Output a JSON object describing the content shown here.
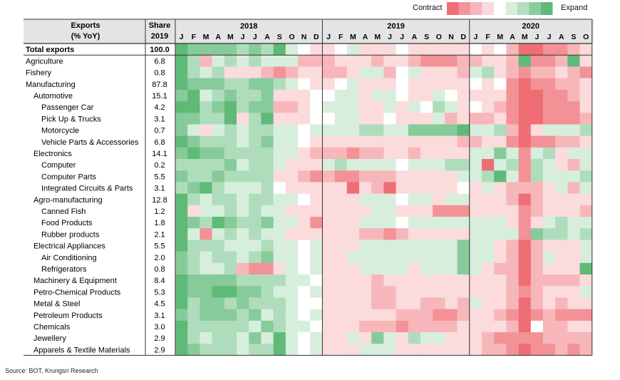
{
  "legend": {
    "contract_label": "Contract",
    "expand_label": "Expand",
    "scale_colors": [
      "#ee6e74",
      "#f3949a",
      "#f7b8bc",
      "#fadadc",
      "#ffffff",
      "#d6eedc",
      "#b2e0be",
      "#89cd9c",
      "#5fba78"
    ]
  },
  "source": "Source: BOT, Krungsri Research",
  "header": {
    "col1_line1": "Exports",
    "col1_line2": "(% YoY)",
    "col2_line1": "Share",
    "col2_line2": "2019"
  },
  "colors": {
    "contract": "#ee6e74",
    "neutral": "#ffffff",
    "expand": "#5fba78",
    "header_bg": "#e4e4e4"
  },
  "chart_data": {
    "type": "heatmap",
    "value_scale": "ordinal shade from -4 (strong contraction) to +4 (strong expansion), estimated from cell colors",
    "years": [
      {
        "label": "2018",
        "months": [
          "J",
          "F",
          "M",
          "A",
          "M",
          "J",
          "J",
          "A",
          "S",
          "O",
          "N",
          "D"
        ]
      },
      {
        "label": "2019",
        "months": [
          "J",
          "F",
          "M",
          "A",
          "M",
          "J",
          "J",
          "A",
          "S",
          "O",
          "N",
          "D"
        ]
      },
      {
        "label": "2020",
        "months": [
          "J",
          "F",
          "M",
          "A",
          "M",
          "J",
          "J",
          "A",
          "S",
          "O"
        ]
      }
    ],
    "rows": [
      {
        "label": "Total exports",
        "share": "100.0",
        "indent": 0,
        "bold": true,
        "values": [
          4,
          3,
          3,
          3,
          3,
          2,
          3,
          2,
          4,
          1,
          0,
          -1,
          -1,
          0,
          1,
          -1,
          -1,
          -1,
          0,
          -1,
          -1,
          -1,
          -1,
          -1,
          0,
          -1,
          0,
          -2,
          -4,
          -4,
          -3,
          -3,
          -2,
          -1
        ]
      },
      {
        "label": "Agriculture",
        "share": "6.8",
        "indent": 0,
        "values": [
          4,
          2,
          -2,
          1,
          2,
          1,
          2,
          1,
          1,
          1,
          -2,
          -2,
          -2,
          -1,
          -1,
          -1,
          -2,
          -1,
          -1,
          -2,
          -3,
          -3,
          -3,
          -2,
          -2,
          -1,
          -1,
          -2,
          4,
          -3,
          -3,
          -2,
          4,
          -1
        ]
      },
      {
        "label": "Fishery",
        "share": "0.8",
        "indent": 0,
        "values": [
          4,
          2,
          1,
          2,
          -1,
          -1,
          -1,
          -2,
          -3,
          -2,
          -1,
          -1,
          -2,
          -2,
          -1,
          1,
          1,
          -2,
          0,
          1,
          -1,
          -1,
          -1,
          -2,
          1,
          2,
          -1,
          -2,
          -3,
          -2,
          -2,
          -1,
          -2,
          -3
        ]
      },
      {
        "label": "Manufacturing",
        "share": "87.8",
        "indent": 0,
        "values": [
          4,
          3,
          3,
          3,
          2,
          2,
          3,
          3,
          2,
          1,
          0,
          -1,
          -1,
          0,
          1,
          -1,
          -1,
          -1,
          0,
          -1,
          -1,
          -1,
          -1,
          -1,
          0,
          -1,
          0,
          -3,
          -4,
          -3,
          -3,
          -2,
          -2,
          -1
        ]
      },
      {
        "label": "Automotive",
        "share": "15.1",
        "indent": 1,
        "values": [
          3,
          4,
          1,
          2,
          3,
          2,
          2,
          3,
          -1,
          -1,
          -1,
          0,
          0,
          1,
          1,
          -1,
          1,
          1,
          0,
          -1,
          -1,
          1,
          0,
          -1,
          -1,
          -1,
          -1,
          -3,
          -4,
          -4,
          -3,
          -3,
          -2,
          -1
        ]
      },
      {
        "label": "Passenger Car",
        "share": "4.2",
        "indent": 2,
        "values": [
          4,
          4,
          2,
          3,
          4,
          2,
          3,
          3,
          -2,
          -2,
          -1,
          0,
          1,
          1,
          1,
          -1,
          -1,
          1,
          -1,
          1,
          0,
          2,
          1,
          -1,
          0,
          -1,
          -2,
          -3,
          -4,
          -4,
          -3,
          -3,
          -3,
          -1
        ]
      },
      {
        "label": "Pick Up & Trucks",
        "share": "3.1",
        "indent": 2,
        "values": [
          3,
          3,
          2,
          2,
          4,
          -1,
          2,
          4,
          -1,
          -1,
          -1,
          0,
          0,
          1,
          1,
          -1,
          -1,
          0,
          -1,
          -1,
          -1,
          1,
          -2,
          -1,
          -2,
          -2,
          -1,
          -3,
          -4,
          -4,
          -3,
          -3,
          -3,
          -2
        ]
      },
      {
        "label": "Motorcycle",
        "share": "0.7",
        "indent": 2,
        "values": [
          3,
          1,
          -1,
          1,
          2,
          1,
          2,
          2,
          1,
          1,
          0,
          1,
          1,
          1,
          1,
          2,
          2,
          1,
          1,
          3,
          3,
          3,
          3,
          4,
          1,
          1,
          2,
          -2,
          -4,
          -1,
          1,
          1,
          1,
          2
        ]
      },
      {
        "label": "Vehicle Parts & Accessories",
        "share": "6.8",
        "indent": 2,
        "values": [
          4,
          3,
          2,
          2,
          2,
          1,
          2,
          3,
          1,
          1,
          0,
          -1,
          -1,
          -1,
          -1,
          -1,
          -1,
          -1,
          -1,
          -1,
          -1,
          -1,
          -1,
          -2,
          -2,
          -1,
          -1,
          -3,
          -4,
          -3,
          -3,
          -2,
          -2,
          -1
        ]
      },
      {
        "label": "Electronics",
        "share": "14.1",
        "indent": 1,
        "values": [
          3,
          4,
          3,
          3,
          2,
          2,
          2,
          2,
          1,
          1,
          -1,
          -2,
          -2,
          -2,
          -3,
          -2,
          -2,
          -1,
          -1,
          -2,
          -1,
          -1,
          -1,
          -1,
          1,
          1,
          3,
          1,
          -3,
          1,
          2,
          -1,
          1,
          1
        ]
      },
      {
        "label": "Computer",
        "share": "0.2",
        "indent": 2,
        "values": [
          2,
          2,
          2,
          2,
          3,
          1,
          2,
          2,
          1,
          -1,
          -1,
          -1,
          1,
          2,
          1,
          1,
          1,
          1,
          0,
          1,
          1,
          1,
          2,
          2,
          1,
          -4,
          1,
          2,
          -3,
          2,
          1,
          -1,
          -2,
          1
        ]
      },
      {
        "label": "Computer Parts",
        "share": "5.5",
        "indent": 2,
        "values": [
          3,
          2,
          2,
          3,
          2,
          2,
          2,
          2,
          -1,
          -1,
          -2,
          -3,
          -2,
          -3,
          -3,
          -2,
          -2,
          -2,
          -1,
          -1,
          -1,
          -1,
          -1,
          1,
          1,
          2,
          4,
          1,
          -3,
          2,
          1,
          1,
          1,
          2
        ]
      },
      {
        "label": "Integrated Circuits & Parts",
        "share": "3.1",
        "indent": 2,
        "values": [
          2,
          3,
          4,
          2,
          1,
          1,
          1,
          2,
          0,
          -1,
          -1,
          -1,
          -1,
          -1,
          -4,
          -1,
          -2,
          -4,
          -1,
          -1,
          -1,
          -1,
          -1,
          0,
          -1,
          1,
          -1,
          -2,
          -2,
          -2,
          -1,
          1,
          -2,
          1
        ]
      },
      {
        "label": "Agro-manufacturing",
        "share": "12.8",
        "indent": 1,
        "values": [
          4,
          2,
          1,
          2,
          2,
          1,
          2,
          2,
          1,
          1,
          0,
          -1,
          -1,
          -1,
          -1,
          1,
          1,
          1,
          0,
          1,
          1,
          -1,
          1,
          1,
          -1,
          -1,
          -1,
          -2,
          -4,
          -2,
          -1,
          -1,
          -1,
          -1
        ]
      },
      {
        "label": "Canned Fish",
        "share": "1.2",
        "indent": 2,
        "values": [
          4,
          -1,
          1,
          1,
          2,
          1,
          2,
          1,
          1,
          -1,
          -1,
          -1,
          -1,
          -1,
          -1,
          -1,
          1,
          1,
          -1,
          -1,
          -1,
          -3,
          -3,
          -3,
          -1,
          -1,
          -1,
          -1,
          -3,
          -2,
          -1,
          -1,
          -1,
          -2
        ]
      },
      {
        "label": "Food Products",
        "share": "1.8",
        "indent": 2,
        "values": [
          4,
          3,
          2,
          4,
          3,
          2,
          2,
          3,
          1,
          1,
          -1,
          -3,
          -1,
          -1,
          -1,
          1,
          1,
          1,
          0,
          1,
          1,
          1,
          1,
          1,
          1,
          1,
          1,
          -1,
          -3,
          -1,
          1,
          2,
          1,
          1
        ]
      },
      {
        "label": "Rubber products",
        "share": "2.1",
        "indent": 2,
        "values": [
          4,
          1,
          -3,
          1,
          2,
          1,
          2,
          1,
          1,
          -1,
          -1,
          -1,
          -1,
          -1,
          -1,
          -2,
          -2,
          -3,
          -2,
          -1,
          -1,
          -1,
          -1,
          -1,
          1,
          1,
          1,
          1,
          -3,
          3,
          2,
          2,
          1,
          2
        ]
      },
      {
        "label": "Electrical Appliances",
        "share": "5.5",
        "indent": 1,
        "values": [
          4,
          2,
          2,
          2,
          1,
          1,
          1,
          2,
          1,
          1,
          0,
          1,
          -1,
          -1,
          -1,
          1,
          1,
          1,
          1,
          1,
          1,
          1,
          1,
          3,
          1,
          1,
          -1,
          -2,
          -4,
          -2,
          -1,
          -1,
          -1,
          1
        ]
      },
      {
        "label": "Air Conditioning",
        "share": "2.0",
        "indent": 2,
        "values": [
          3,
          2,
          1,
          2,
          2,
          1,
          2,
          3,
          1,
          1,
          0,
          1,
          -1,
          -1,
          1,
          1,
          1,
          1,
          1,
          1,
          1,
          1,
          1,
          3,
          1,
          1,
          -1,
          -2,
          -4,
          -2,
          1,
          -1,
          -1,
          1
        ]
      },
      {
        "label": "Refrigerators",
        "share": "0.8",
        "indent": 2,
        "values": [
          3,
          2,
          1,
          1,
          2,
          -2,
          -3,
          -3,
          -1,
          1,
          0,
          1,
          -1,
          -1,
          -1,
          1,
          1,
          1,
          1,
          -1,
          1,
          1,
          1,
          3,
          1,
          -1,
          -2,
          -2,
          -4,
          -2,
          -1,
          -1,
          -1,
          4
        ]
      },
      {
        "label": "Machinery & Equipment",
        "share": "8.4",
        "indent": 1,
        "values": [
          4,
          3,
          3,
          3,
          3,
          2,
          2,
          2,
          2,
          1,
          1,
          0,
          -1,
          -1,
          -1,
          -1,
          -2,
          -1,
          -1,
          -1,
          -1,
          -1,
          -1,
          -1,
          -1,
          -1,
          -1,
          -2,
          -4,
          -2,
          -2,
          -2,
          -2,
          -1
        ]
      },
      {
        "label": "Petro-Chemical Products",
        "share": "5.3",
        "indent": 1,
        "values": [
          4,
          3,
          3,
          4,
          4,
          3,
          3,
          2,
          1,
          1,
          0,
          1,
          -1,
          -1,
          -1,
          -1,
          -2,
          -2,
          -1,
          -1,
          -1,
          -1,
          -1,
          -1,
          -1,
          -1,
          -1,
          -2,
          -3,
          -2,
          -1,
          -1,
          -1,
          1
        ]
      },
      {
        "label": "Metal & Steel",
        "share": "4.5",
        "indent": 1,
        "values": [
          4,
          2,
          3,
          3,
          2,
          3,
          2,
          2,
          2,
          1,
          0,
          0,
          -1,
          -1,
          -1,
          -1,
          -2,
          -2,
          -1,
          -1,
          -2,
          -2,
          -1,
          -2,
          1,
          -1,
          -1,
          -2,
          -4,
          -2,
          -1,
          -2,
          -1,
          -1
        ]
      },
      {
        "label": "Petroleum Products",
        "share": "3.1",
        "indent": 1,
        "values": [
          3,
          2,
          3,
          3,
          3,
          2,
          3,
          1,
          2,
          1,
          0,
          1,
          -1,
          -1,
          -1,
          -1,
          -1,
          -1,
          -2,
          -2,
          -2,
          -3,
          -3,
          -2,
          -1,
          -1,
          -2,
          -3,
          -4,
          -3,
          -2,
          -3,
          -3,
          -3
        ]
      },
      {
        "label": "Chemicals",
        "share": "3.0",
        "indent": 1,
        "values": [
          4,
          2,
          2,
          2,
          2,
          2,
          1,
          3,
          2,
          1,
          1,
          0,
          -1,
          -1,
          -1,
          -2,
          -2,
          -2,
          -3,
          -2,
          -2,
          -2,
          -2,
          -1,
          -1,
          -1,
          -1,
          -2,
          -4,
          0,
          -2,
          -2,
          -1,
          -1
        ]
      },
      {
        "label": "Jewellery",
        "share": "2.9",
        "indent": 1,
        "values": [
          4,
          2,
          1,
          2,
          2,
          1,
          3,
          1,
          4,
          1,
          0,
          1,
          -1,
          -1,
          1,
          -1,
          3,
          1,
          -1,
          2,
          1,
          1,
          -1,
          -1,
          -1,
          -2,
          -3,
          -3,
          -3,
          -3,
          -2,
          -2,
          -2,
          -2
        ]
      },
      {
        "label": "Apparels & Textile Materials",
        "share": "2.9",
        "indent": 1,
        "values": [
          4,
          3,
          2,
          2,
          2,
          1,
          2,
          2,
          4,
          1,
          0,
          1,
          -1,
          -1,
          -1,
          1,
          1,
          1,
          -1,
          -1,
          -1,
          -1,
          -1,
          -1,
          -1,
          -2,
          -2,
          -3,
          -4,
          -3,
          -3,
          -2,
          -3,
          -2
        ]
      }
    ]
  }
}
